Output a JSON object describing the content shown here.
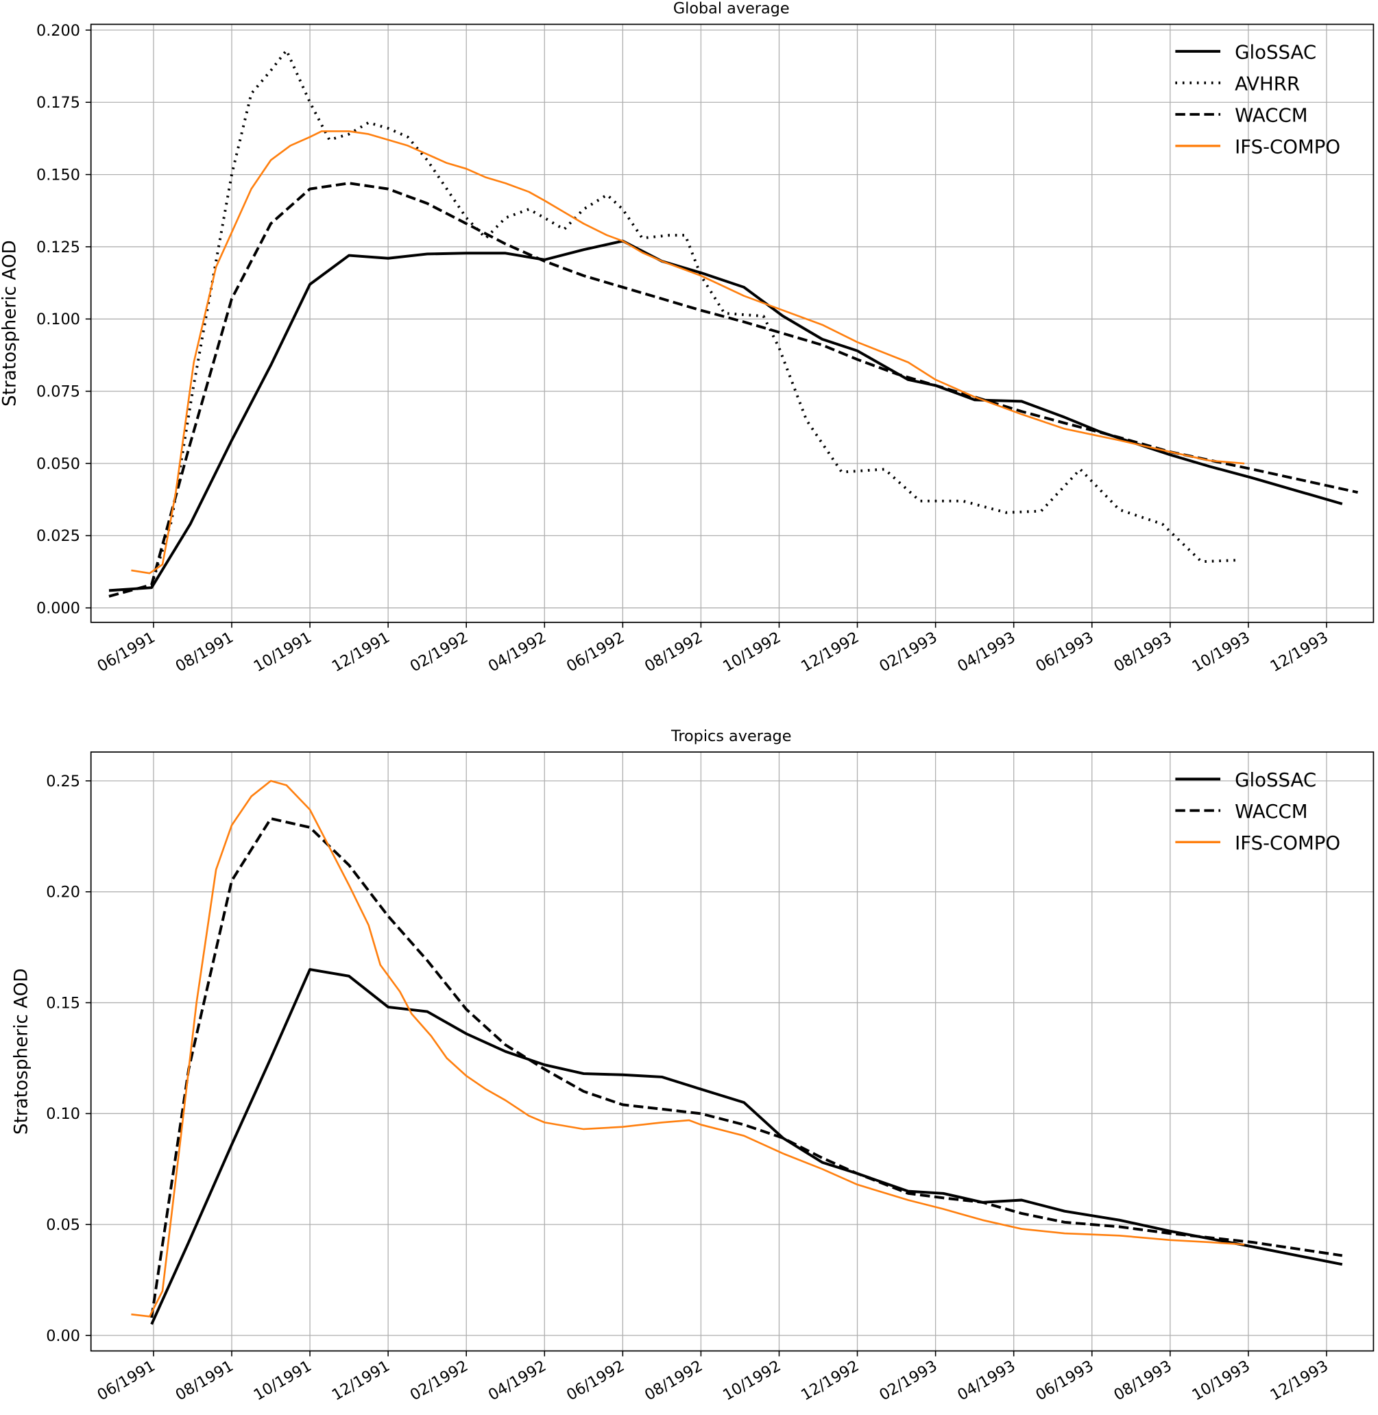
{
  "chart_data": [
    {
      "type": "line",
      "title": "Global average",
      "xlabel": "",
      "ylabel": "Stratospheric AOD",
      "x_unit": "months since 06/1991",
      "xlim": [
        -1.6,
        31.2
      ],
      "ylim": [
        -0.005,
        0.202
      ],
      "grid": true,
      "legend_position": "top-right",
      "x_ticks": [
        {
          "v": 0,
          "label": "06/1991"
        },
        {
          "v": 2,
          "label": "08/1991"
        },
        {
          "v": 4,
          "label": "10/1991"
        },
        {
          "v": 6,
          "label": "12/1991"
        },
        {
          "v": 8,
          "label": "02/1992"
        },
        {
          "v": 10,
          "label": "04/1992"
        },
        {
          "v": 12,
          "label": "06/1992"
        },
        {
          "v": 14,
          "label": "08/1992"
        },
        {
          "v": 16,
          "label": "10/1992"
        },
        {
          "v": 18,
          "label": "12/1992"
        },
        {
          "v": 20,
          "label": "02/1993"
        },
        {
          "v": 22,
          "label": "04/1993"
        },
        {
          "v": 24,
          "label": "06/1993"
        },
        {
          "v": 26,
          "label": "08/1993"
        },
        {
          "v": 28,
          "label": "10/1993"
        },
        {
          "v": 30,
          "label": "12/1993"
        }
      ],
      "y_ticks": [
        {
          "v": 0,
          "label": "0.000"
        },
        {
          "v": 0.025,
          "label": "0.025"
        },
        {
          "v": 0.05,
          "label": "0.050"
        },
        {
          "v": 0.075,
          "label": "0.075"
        },
        {
          "v": 0.1,
          "label": "0.100"
        },
        {
          "v": 0.125,
          "label": "0.125"
        },
        {
          "v": 0.15,
          "label": "0.150"
        },
        {
          "v": 0.175,
          "label": "0.175"
        },
        {
          "v": 0.2,
          "label": "0.200"
        }
      ],
      "series": [
        {
          "name": "GloSSAC",
          "style": "solid",
          "color": "#000000",
          "x": [
            -1.14,
            -0.05,
            0.94,
            2,
            3,
            4,
            5,
            6,
            7,
            8,
            9,
            10,
            11,
            12,
            13,
            14,
            15.1,
            16.1,
            17.1,
            18,
            19.3,
            20,
            21,
            22.2,
            23.3,
            24.2,
            26,
            27,
            28.1,
            30.4
          ],
          "y": [
            0.006,
            0.007,
            0.029,
            0.058,
            0.084,
            0.112,
            0.122,
            0.121,
            0.1225,
            0.1228,
            0.1228,
            0.1205,
            0.124,
            0.127,
            0.12,
            0.116,
            0.111,
            0.101,
            0.093,
            0.089,
            0.079,
            0.077,
            0.072,
            0.0715,
            0.066,
            0.061,
            0.053,
            0.049,
            0.045,
            0.036
          ]
        },
        {
          "name": "AVHRR",
          "style": "dotted",
          "color": "#000000",
          "x": [
            0,
            0.46,
            1,
            1.6,
            2,
            2.5,
            3,
            3.4,
            4,
            4.5,
            5,
            5.5,
            6,
            6.5,
            7,
            7.5,
            8,
            8.5,
            9,
            9.6,
            10,
            10.5,
            11,
            11.6,
            12,
            12.5,
            13.2,
            13.6,
            14,
            14.6,
            15.6,
            16,
            16.7,
            17.6,
            18.7,
            19.6,
            20.7,
            21.8,
            22.7,
            23.7,
            24.7,
            25.8,
            26.8,
            27.7
          ],
          "y": [
            0.01,
            0.03,
            0.075,
            0.12,
            0.15,
            0.178,
            0.186,
            0.193,
            0.175,
            0.162,
            0.164,
            0.168,
            0.166,
            0.163,
            0.155,
            0.145,
            0.135,
            0.128,
            0.135,
            0.138,
            0.135,
            0.131,
            0.138,
            0.143,
            0.138,
            0.128,
            0.129,
            0.129,
            0.115,
            0.102,
            0.101,
            0.09,
            0.065,
            0.047,
            0.048,
            0.037,
            0.037,
            0.033,
            0.0335,
            0.048,
            0.034,
            0.029,
            0.016,
            0.0165
          ]
        },
        {
          "name": "WACCM",
          "style": "dashed",
          "color": "#000000",
          "x": [
            -1.14,
            -0.05,
            0.9,
            2,
            3,
            4,
            5,
            6,
            7,
            8,
            9,
            10,
            11,
            12,
            13,
            14,
            15.1,
            16.1,
            17.1,
            18,
            19,
            20,
            21,
            22.2,
            23.3,
            24.7,
            26,
            28.1,
            30.8
          ],
          "y": [
            0.004,
            0.008,
            0.055,
            0.107,
            0.133,
            0.145,
            0.147,
            0.145,
            0.14,
            0.133,
            0.126,
            0.12,
            0.115,
            0.111,
            0.107,
            0.103,
            0.099,
            0.095,
            0.091,
            0.086,
            0.081,
            0.077,
            0.073,
            0.068,
            0.064,
            0.059,
            0.054,
            0.048,
            0.04
          ]
        },
        {
          "name": "IFS-COMPO",
          "style": "solid",
          "color": "#ff7f0e",
          "x": [
            -0.57,
            -0.1,
            0.23,
            0.57,
            1.03,
            1.6,
            2,
            2.5,
            3,
            3.5,
            4,
            4.3,
            5,
            5.5,
            6,
            6.5,
            7,
            7.5,
            8,
            8.5,
            9,
            9.6,
            10,
            10.5,
            11,
            11.6,
            12,
            12.5,
            13,
            14,
            15.1,
            16.1,
            17.1,
            18,
            19.3,
            20,
            21,
            22.2,
            23.3,
            24.7,
            26,
            27,
            27.9
          ],
          "y": [
            0.013,
            0.012,
            0.015,
            0.04,
            0.085,
            0.118,
            0.13,
            0.145,
            0.155,
            0.16,
            0.163,
            0.165,
            0.165,
            0.164,
            0.162,
            0.16,
            0.157,
            0.154,
            0.152,
            0.149,
            0.147,
            0.144,
            0.141,
            0.137,
            0.133,
            0.129,
            0.127,
            0.123,
            0.12,
            0.115,
            0.108,
            0.103,
            0.098,
            0.092,
            0.085,
            0.079,
            0.073,
            0.067,
            0.062,
            0.058,
            0.054,
            0.051,
            0.05
          ]
        }
      ]
    },
    {
      "type": "line",
      "title": "Tropics average",
      "xlabel": "",
      "ylabel": "Stratospheric AOD",
      "x_unit": "months since 06/1991",
      "xlim": [
        -1.6,
        31.2
      ],
      "ylim": [
        -0.007,
        0.263
      ],
      "grid": true,
      "legend_position": "top-right",
      "x_ticks": [
        {
          "v": 0,
          "label": "06/1991"
        },
        {
          "v": 2,
          "label": "08/1991"
        },
        {
          "v": 4,
          "label": "10/1991"
        },
        {
          "v": 6,
          "label": "12/1991"
        },
        {
          "v": 8,
          "label": "02/1992"
        },
        {
          "v": 10,
          "label": "04/1992"
        },
        {
          "v": 12,
          "label": "06/1992"
        },
        {
          "v": 14,
          "label": "08/1992"
        },
        {
          "v": 16,
          "label": "10/1992"
        },
        {
          "v": 18,
          "label": "12/1992"
        },
        {
          "v": 20,
          "label": "02/1993"
        },
        {
          "v": 22,
          "label": "04/1993"
        },
        {
          "v": 24,
          "label": "06/1993"
        },
        {
          "v": 26,
          "label": "08/1993"
        },
        {
          "v": 28,
          "label": "10/1993"
        },
        {
          "v": 30,
          "label": "12/1993"
        }
      ],
      "y_ticks": [
        {
          "v": 0,
          "label": "0.00"
        },
        {
          "v": 0.05,
          "label": "0.05"
        },
        {
          "v": 0.1,
          "label": "0.10"
        },
        {
          "v": 0.15,
          "label": "0.15"
        },
        {
          "v": 0.2,
          "label": "0.20"
        },
        {
          "v": 0.25,
          "label": "0.25"
        }
      ],
      "series": [
        {
          "name": "GloSSAC",
          "style": "solid",
          "color": "#000000",
          "x": [
            -0.05,
            0.9,
            2,
            3,
            4,
            5,
            6,
            7,
            8,
            9,
            10,
            11,
            12,
            13,
            14,
            15.1,
            16.1,
            17.1,
            18,
            19.3,
            20.2,
            21.2,
            22.2,
            23.3,
            24.7,
            26,
            28.1,
            30.4
          ],
          "y": [
            0.005,
            0.042,
            0.086,
            0.125,
            0.165,
            0.162,
            0.148,
            0.146,
            0.136,
            0.128,
            0.122,
            0.118,
            0.1175,
            0.1165,
            0.111,
            0.105,
            0.089,
            0.078,
            0.073,
            0.065,
            0.064,
            0.06,
            0.061,
            0.056,
            0.052,
            0.047,
            0.04,
            0.032
          ]
        },
        {
          "name": "WACCM",
          "style": "dashed",
          "color": "#000000",
          "x": [
            -0.05,
            0.9,
            2,
            3,
            4,
            5,
            6,
            7,
            8,
            9,
            10,
            11,
            12,
            13,
            14,
            15.1,
            16.1,
            17.1,
            18,
            19.3,
            20.2,
            21.2,
            22.2,
            23.3,
            24.7,
            26,
            28.1,
            30.4
          ],
          "y": [
            0.008,
            0.12,
            0.205,
            0.233,
            0.229,
            0.212,
            0.189,
            0.169,
            0.147,
            0.131,
            0.12,
            0.11,
            0.104,
            0.102,
            0.1,
            0.095,
            0.089,
            0.08,
            0.073,
            0.064,
            0.062,
            0.06,
            0.055,
            0.051,
            0.049,
            0.046,
            0.042,
            0.036
          ]
        },
        {
          "name": "IFS-COMPO",
          "style": "solid",
          "color": "#ff7f0e",
          "x": [
            -0.57,
            -0.1,
            0.23,
            0.7,
            1.1,
            1.6,
            2,
            2.5,
            3,
            3.4,
            4,
            4.5,
            5,
            5.5,
            5.8,
            6.3,
            6.6,
            7.1,
            7.5,
            8,
            8.5,
            9,
            9.6,
            10,
            11,
            12,
            13,
            13.7,
            14,
            15.1,
            16.1,
            17.1,
            18,
            19.3,
            20.2,
            21.2,
            22.2,
            23.3,
            24.7,
            26,
            27,
            27.9
          ],
          "y": [
            0.0095,
            0.0085,
            0.02,
            0.09,
            0.15,
            0.21,
            0.23,
            0.243,
            0.25,
            0.248,
            0.237,
            0.22,
            0.203,
            0.185,
            0.167,
            0.155,
            0.145,
            0.135,
            0.125,
            0.117,
            0.111,
            0.106,
            0.099,
            0.096,
            0.093,
            0.094,
            0.096,
            0.097,
            0.095,
            0.09,
            0.082,
            0.075,
            0.068,
            0.061,
            0.057,
            0.052,
            0.048,
            0.046,
            0.045,
            0.043,
            0.042,
            0.041
          ]
        }
      ]
    }
  ]
}
